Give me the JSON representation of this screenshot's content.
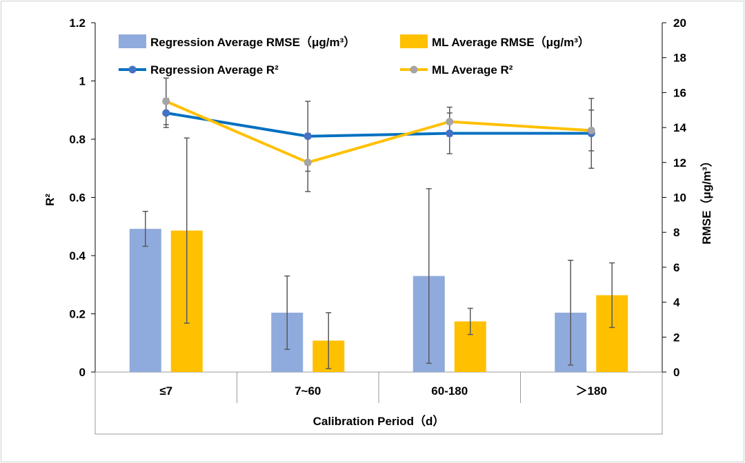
{
  "chart_data": {
    "type": "bar",
    "title": "",
    "xlabel": "Calibration Period（d）",
    "ylabel_left": "R²",
    "ylabel_right": "RMSE（μg/m³）",
    "ylim_left": [
      0,
      1.2
    ],
    "ylim_right": [
      0,
      20
    ],
    "yticks_left": [
      "0",
      "0.2",
      "0.4",
      "0.6",
      "0.8",
      "1",
      "1.2"
    ],
    "yticks_right": [
      "0",
      "2",
      "4",
      "6",
      "8",
      "10",
      "12",
      "14",
      "16",
      "18",
      "20"
    ],
    "categories": [
      "≤7",
      "7~60",
      "60-180",
      "＞180"
    ],
    "grid": false,
    "legend_placement": "top",
    "bar_series": [
      {
        "name": "Regression Average RMSE（μg/m³）",
        "axis": "right",
        "color": "#8faadc",
        "values": [
          8.2,
          3.4,
          5.5,
          3.4
        ],
        "errors": [
          1.0,
          2.1,
          5.0,
          3.0
        ]
      },
      {
        "name": "ML Average RMSE（μg/m³）",
        "axis": "right",
        "color": "#ffc000",
        "values": [
          8.1,
          1.8,
          2.9,
          4.4
        ],
        "errors": [
          5.3,
          1.6,
          0.75,
          1.85
        ]
      }
    ],
    "line_series": [
      {
        "name": "Regression Average R²",
        "axis": "left",
        "color": "#0070c0",
        "marker_color": "#4472c4",
        "values": [
          0.89,
          0.81,
          0.82,
          0.82
        ],
        "errors": [
          0.05,
          0.12,
          0.07,
          0.12
        ]
      },
      {
        "name": "ML Average R²",
        "axis": "left",
        "color": "#ffc000",
        "marker_color": "#a5a5a5",
        "values": [
          0.93,
          0.72,
          0.86,
          0.83
        ],
        "errors": [
          0.08,
          0.1,
          0.05,
          0.07
        ]
      }
    ]
  }
}
